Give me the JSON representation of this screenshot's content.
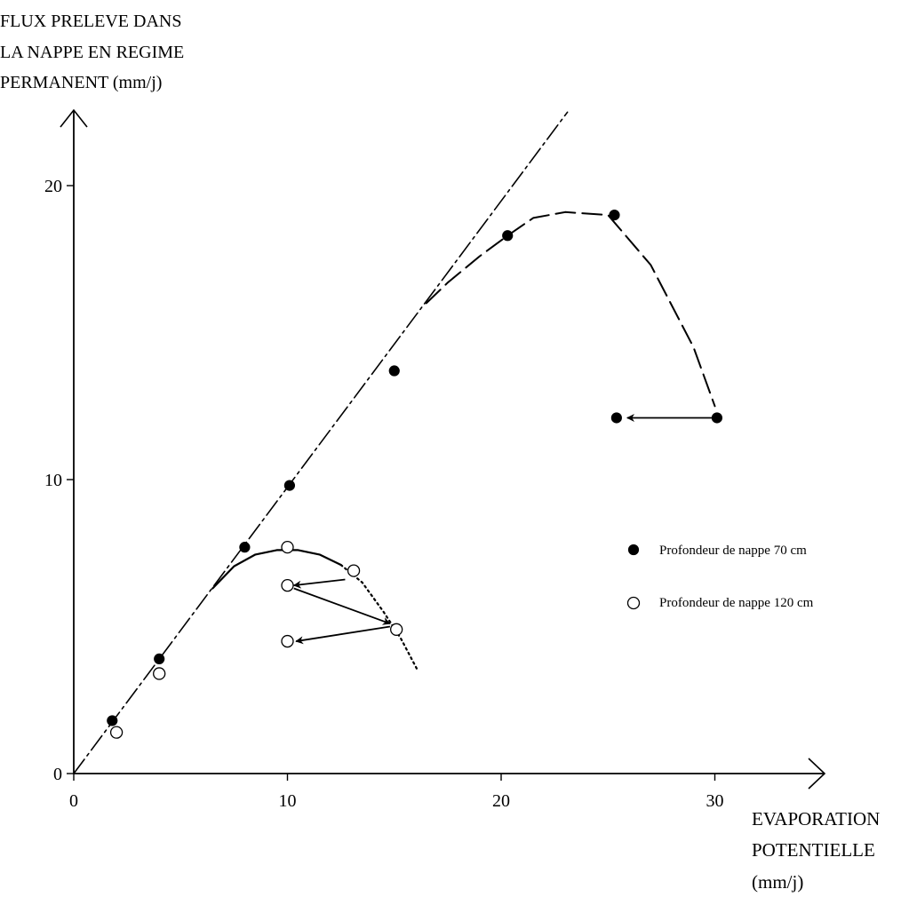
{
  "chart_data": {
    "type": "scatter",
    "title": "",
    "ylabel_lines": [
      "FLUX PRELEVE DANS",
      "LA NAPPE EN REGIME",
      "PERMANENT (mm/j)"
    ],
    "xlabel_lines": [
      "EVAPORATION",
      "POTENTIELLE",
      "(mm/j)"
    ],
    "xlim": [
      0,
      35
    ],
    "ylim": [
      0,
      22.5
    ],
    "x_ticks": [
      0,
      10,
      20,
      30
    ],
    "x_tick_labels": [
      "0",
      "10",
      "20",
      "30"
    ],
    "y_ticks": [
      0,
      10,
      20
    ],
    "y_tick_labels": [
      "0",
      "10",
      "20"
    ],
    "grid": false,
    "legend_position": "right",
    "series": [
      {
        "name": "Profondeur de nappe 70 cm",
        "marker": "filled-circle",
        "points": [
          [
            1.8,
            1.8
          ],
          [
            4,
            3.9
          ],
          [
            8,
            7.7
          ],
          [
            10.1,
            9.8
          ],
          [
            15,
            13.7
          ],
          [
            20.3,
            18.3
          ],
          [
            25.3,
            19
          ],
          [
            25.4,
            12.1
          ],
          [
            30.1,
            12.1
          ]
        ]
      },
      {
        "name": "Profondeur de nappe 120 cm",
        "marker": "open-circle",
        "points": [
          [
            2,
            1.4
          ],
          [
            4,
            3.4
          ],
          [
            10,
            7.7
          ],
          [
            13.1,
            6.9
          ],
          [
            10,
            6.4
          ],
          [
            15.1,
            4.9
          ],
          [
            10,
            4.5
          ]
        ]
      }
    ],
    "lines": [
      {
        "style": "dash-dot",
        "points": [
          [
            0,
            0
          ],
          [
            23.1,
            22.5
          ]
        ]
      },
      {
        "style": "dashed",
        "points": [
          [
            16.5,
            16
          ],
          [
            17.5,
            16.7
          ],
          [
            19,
            17.6
          ],
          [
            20.3,
            18.3
          ],
          [
            21.5,
            18.9
          ],
          [
            23,
            19.1
          ],
          [
            25,
            19
          ],
          [
            27,
            17.3
          ],
          [
            29,
            14.5
          ],
          [
            30,
            12.5
          ]
        ]
      },
      {
        "style": "solid",
        "points": [
          [
            6.5,
            6.3
          ],
          [
            7.5,
            7.05
          ],
          [
            8.5,
            7.45
          ],
          [
            9.5,
            7.6
          ],
          [
            10.5,
            7.6
          ],
          [
            11.5,
            7.45
          ],
          [
            12.5,
            7.1
          ]
        ]
      },
      {
        "style": "dotted",
        "points": [
          [
            12.5,
            7.1
          ],
          [
            13.5,
            6.5
          ],
          [
            14.5,
            5.5
          ],
          [
            15.3,
            4.6
          ],
          [
            16.1,
            3.5
          ]
        ]
      }
    ],
    "arrows": [
      {
        "from": [
          30,
          12.1
        ],
        "to": [
          25.9,
          12.1
        ]
      },
      {
        "from": [
          12.7,
          6.6
        ],
        "to": [
          10.3,
          6.4
        ]
      },
      {
        "from": [
          10.3,
          6.3
        ],
        "to": [
          14.8,
          5.1
        ]
      },
      {
        "from": [
          14.8,
          5.0
        ],
        "to": [
          10.4,
          4.5
        ]
      }
    ]
  }
}
